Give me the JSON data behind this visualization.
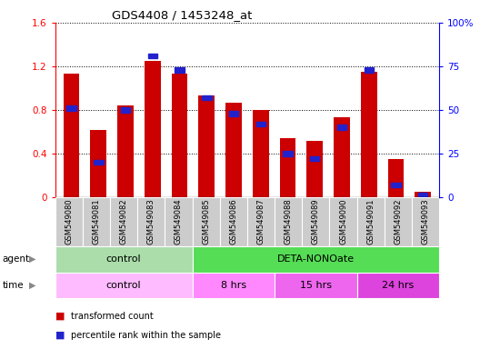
{
  "title": "GDS4408 / 1453248_at",
  "samples": [
    "GSM549080",
    "GSM549081",
    "GSM549082",
    "GSM549083",
    "GSM549084",
    "GSM549085",
    "GSM549086",
    "GSM549087",
    "GSM549088",
    "GSM549089",
    "GSM549090",
    "GSM549091",
    "GSM549092",
    "GSM549093"
  ],
  "red_values": [
    1.13,
    0.62,
    0.84,
    1.25,
    1.13,
    0.93,
    0.87,
    0.8,
    0.54,
    0.52,
    0.73,
    1.15,
    0.35,
    0.05
  ],
  "blue_values_pct": [
    51,
    20,
    50,
    81,
    73,
    57,
    48,
    42,
    25,
    22,
    40,
    73,
    7,
    1
  ],
  "ylim_left": [
    0,
    1.6
  ],
  "ylim_right": [
    0,
    100
  ],
  "yticks_left": [
    0,
    0.4,
    0.8,
    1.2,
    1.6
  ],
  "ytick_labels_left": [
    "0",
    "0.4",
    "0.8",
    "1.2",
    "1.6"
  ],
  "yticks_right": [
    0,
    25,
    50,
    75,
    100
  ],
  "ytick_labels_right": [
    "0",
    "25",
    "50",
    "75",
    "100%"
  ],
  "red_color": "#cc0000",
  "blue_color": "#2222cc",
  "bar_width": 0.6,
  "agent_groups": [
    {
      "label": "control",
      "start": 0,
      "end": 5,
      "color": "#aaeea a"
    },
    {
      "label": "DETA-NONOate",
      "start": 5,
      "end": 14,
      "color": "#55dd55"
    }
  ],
  "time_groups": [
    {
      "label": "control",
      "start": 0,
      "end": 5,
      "color": "#ffaaff"
    },
    {
      "label": "8 hrs",
      "start": 5,
      "end": 8,
      "color": "#ee88ee"
    },
    {
      "label": "15 hrs",
      "start": 8,
      "end": 11,
      "color": "#dd66dd"
    },
    {
      "label": "24 hrs",
      "start": 11,
      "end": 14,
      "color": "#cc44cc"
    }
  ],
  "legend_red": "transformed count",
  "legend_blue": "percentile rank within the sample",
  "label_area_bg": "#cccccc",
  "agent_control_color": "#aaddaa",
  "agent_deta_color": "#55dd55",
  "time_control_color": "#ffbbff",
  "time_8hrs_color": "#ff88ff",
  "time_15hrs_color": "#ee66ee",
  "time_24hrs_color": "#dd44dd"
}
